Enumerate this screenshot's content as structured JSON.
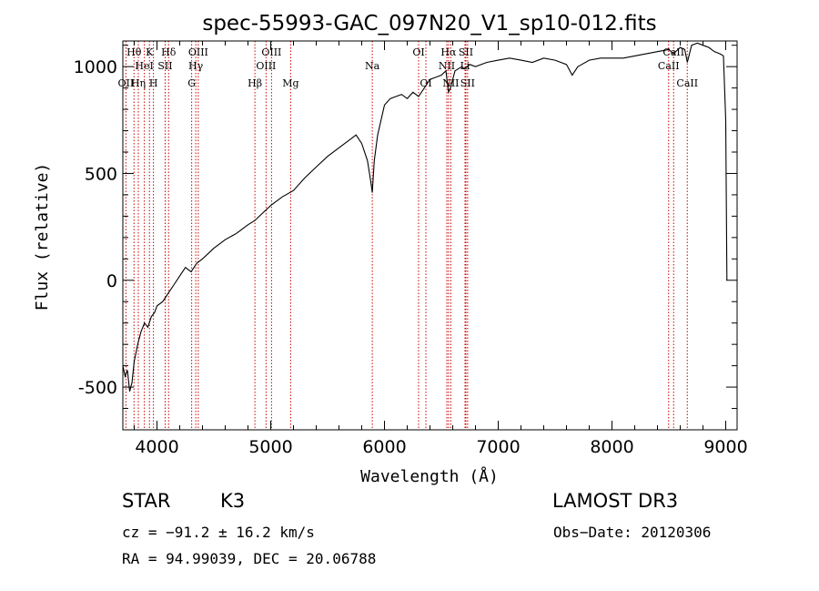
{
  "chart_data": {
    "type": "line",
    "title": "spec-55993-GAC_097N20_V1_sp10-012.fits",
    "xlabel": "Wavelength (Å)",
    "ylabel": "Flux (relative)",
    "xlim": [
      3700,
      9100
    ],
    "ylim": [
      -700,
      1120
    ],
    "xticks": [
      4000,
      5000,
      6000,
      7000,
      8000,
      9000
    ],
    "xtick_labels": [
      "4000",
      "5000",
      "6000",
      "7000",
      "8000",
      "9000"
    ],
    "yticks": [
      -500,
      0,
      500,
      1000
    ],
    "ytick_labels": [
      "-500",
      "0",
      "500",
      "1000"
    ],
    "series": [
      {
        "name": "spectrum",
        "x": [
          3700,
          3720,
          3740,
          3760,
          3780,
          3800,
          3830,
          3860,
          3890,
          3920,
          3950,
          3980,
          4000,
          4050,
          4100,
          4150,
          4200,
          4250,
          4300,
          4350,
          4400,
          4500,
          4600,
          4700,
          4800,
          4861,
          4900,
          5000,
          5100,
          5200,
          5300,
          5400,
          5500,
          5600,
          5700,
          5750,
          5800,
          5850,
          5880,
          5893,
          5910,
          5940,
          6000,
          6050,
          6100,
          6150,
          6200,
          6250,
          6300,
          6350,
          6400,
          6450,
          6500,
          6540,
          6563,
          6580,
          6620,
          6680,
          6700,
          6750,
          6800,
          6900,
          7000,
          7100,
          7200,
          7300,
          7400,
          7500,
          7600,
          7650,
          7700,
          7800,
          7900,
          8000,
          8100,
          8200,
          8300,
          8400,
          8500,
          8540,
          8600,
          8640,
          8662,
          8700,
          8750,
          8800,
          8850,
          8900,
          8950,
          8980,
          9000,
          9010
        ],
        "y": [
          -400,
          -450,
          -420,
          -520,
          -480,
          -380,
          -300,
          -240,
          -200,
          -220,
          -170,
          -150,
          -120,
          -100,
          -60,
          -20,
          20,
          60,
          40,
          80,
          100,
          150,
          190,
          220,
          260,
          280,
          300,
          350,
          390,
          420,
          480,
          530,
          580,
          620,
          660,
          680,
          640,
          560,
          460,
          410,
          560,
          680,
          820,
          850,
          860,
          870,
          850,
          880,
          860,
          900,
          940,
          950,
          960,
          980,
          880,
          900,
          980,
          1000,
          990,
          1010,
          1000,
          1020,
          1030,
          1040,
          1030,
          1020,
          1040,
          1030,
          1010,
          960,
          1000,
          1030,
          1040,
          1040,
          1040,
          1050,
          1060,
          1070,
          1080,
          1060,
          1090,
          1080,
          1020,
          1100,
          1110,
          1100,
          1090,
          1070,
          1060,
          1050,
          750,
          0
        ]
      }
    ],
    "spectral_lines": [
      {
        "name": "Hθ",
        "wavelength": 3798,
        "row": 1
      },
      {
        "name": "OII",
        "wavelength": 3727,
        "row": 3
      },
      {
        "name": "Hη",
        "wavelength": 3836,
        "row": 3
      },
      {
        "name": "HeI",
        "wavelength": 3889,
        "row": 2
      },
      {
        "name": "K",
        "wavelength": 3934,
        "row": 1
      },
      {
        "name": "H",
        "wavelength": 3969,
        "row": 3
      },
      {
        "name": "SII",
        "wavelength": 4072,
        "row": 2
      },
      {
        "name": "Hδ",
        "wavelength": 4102,
        "row": 1
      },
      {
        "name": "G",
        "wavelength": 4305,
        "row": 3
      },
      {
        "name": "Hγ",
        "wavelength": 4341,
        "row": 2
      },
      {
        "name": "OIII",
        "wavelength": 4363,
        "row": 1
      },
      {
        "name": "Hβ",
        "wavelength": 4861,
        "row": 3
      },
      {
        "name": "OIII",
        "wavelength": 4959,
        "row": 2
      },
      {
        "name": "OIII",
        "wavelength": 5007,
        "row": 1
      },
      {
        "name": "Mg",
        "wavelength": 5175,
        "row": 3
      },
      {
        "name": "Na",
        "wavelength": 5893,
        "row": 2
      },
      {
        "name": "OI",
        "wavelength": 6300,
        "row": 1
      },
      {
        "name": "OI",
        "wavelength": 6364,
        "row": 3
      },
      {
        "name": "NII",
        "wavelength": 6548,
        "row": 2
      },
      {
        "name": "Hα",
        "wavelength": 6563,
        "row": 1
      },
      {
        "name": "NII",
        "wavelength": 6583,
        "row": 3
      },
      {
        "name": "Li",
        "wavelength": 6708,
        "row": 2
      },
      {
        "name": "SII",
        "wavelength": 6716,
        "row": 1
      },
      {
        "name": "SII",
        "wavelength": 6731,
        "row": 3
      },
      {
        "name": "CaII",
        "wavelength": 8498,
        "row": 2
      },
      {
        "name": "CaII",
        "wavelength": 8542,
        "row": 1
      },
      {
        "name": "CaII",
        "wavelength": 8662,
        "row": 3
      }
    ]
  },
  "info": {
    "object_class": "STAR",
    "subclass": "K3",
    "survey": "LAMOST DR3",
    "cz": "cz = −91.2 ± 16.2 km/s",
    "obs_date": "Obs−Date: 20120306",
    "coords": "RA =  94.99039, DEC =  20.06788"
  },
  "colors": {
    "spectrum": "#000000",
    "line_markers": "#cc0000",
    "axes": "#000000",
    "background": "#ffffff"
  }
}
